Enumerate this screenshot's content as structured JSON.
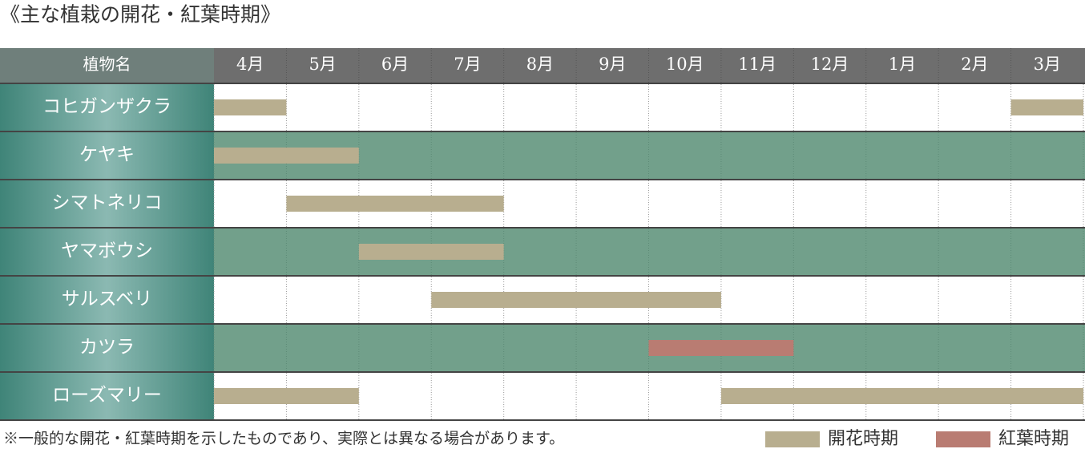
{
  "title": "《主な植栽の開花・紅葉時期》",
  "header": {
    "label": "植物名",
    "months": [
      "4月",
      "5月",
      "6月",
      "7月",
      "8月",
      "9月",
      "10月",
      "11月",
      "12月",
      "1月",
      "2月",
      "3月"
    ]
  },
  "rows": [
    {
      "name": "コヒガンザクラ",
      "periods": [
        {
          "legend": 0,
          "start": 0,
          "end": 1
        },
        {
          "legend": 0,
          "start": 11,
          "end": 12
        }
      ]
    },
    {
      "name": "ケヤキ",
      "periods": [
        {
          "legend": 0,
          "start": 0,
          "end": 2
        }
      ]
    },
    {
      "name": "シマトネリコ",
      "periods": [
        {
          "legend": 0,
          "start": 1,
          "end": 4
        }
      ]
    },
    {
      "name": "ヤマボウシ",
      "periods": [
        {
          "legend": 0,
          "start": 2,
          "end": 4
        }
      ]
    },
    {
      "name": "サルスベリ",
      "periods": [
        {
          "legend": 0,
          "start": 3,
          "end": 7
        }
      ]
    },
    {
      "name": "カツラ",
      "periods": [
        {
          "legend": 1,
          "start": 6,
          "end": 8
        }
      ]
    },
    {
      "name": "ローズマリー",
      "periods": [
        {
          "legend": 0,
          "start": 0,
          "end": 2
        },
        {
          "legend": 0,
          "start": 7,
          "end": 12
        }
      ]
    }
  ],
  "legend": [
    {
      "label": "開花時期",
      "color": "#b8ae8f"
    },
    {
      "label": "紅葉時期",
      "color": "#b97c72"
    }
  ],
  "note": "※一般的な開花・紅葉時期を示したものであり、実際とは異なる場合があります。"
}
